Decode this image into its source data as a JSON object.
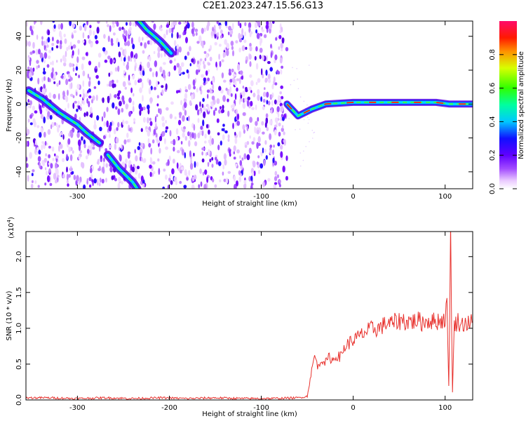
{
  "title": "C2E1.2023.247.15.56.G13",
  "chart_data": [
    {
      "type": "heatmap",
      "title": "C2E1.2023.247.15.56.G13",
      "xlabel": "Height of straight line (km)",
      "ylabel": "Frequency (Hz)",
      "xlim": [
        -356,
        130
      ],
      "ylim": [
        -50,
        49
      ],
      "xticks": [
        -300,
        -200,
        -100,
        0,
        100
      ],
      "yticks": [
        -40,
        -20,
        0,
        20,
        40
      ],
      "noise_region_x": [
        -356,
        -72
      ],
      "features": [
        {
          "name": "streak",
          "points": [
            [
              -353,
              8
            ],
            [
              -338,
              3
            ],
            [
              -320,
              -5
            ],
            [
              -300,
              -12
            ],
            [
              -290,
              -17
            ],
            [
              -276,
              -23
            ]
          ]
        },
        {
          "name": "streak",
          "points": [
            [
              -267,
              -30
            ],
            [
              -255,
              -38
            ],
            [
              -240,
              -46
            ],
            [
              -235,
              -50
            ]
          ]
        },
        {
          "name": "streak",
          "points": [
            [
              -233,
              49
            ],
            [
              -225,
              44
            ],
            [
              -210,
              37
            ],
            [
              -198,
              30
            ]
          ]
        },
        {
          "name": "carrier",
          "points": [
            [
              -72,
              0
            ],
            [
              -60,
              -7
            ],
            [
              -45,
              -3
            ],
            [
              -30,
              0
            ],
            [
              0,
              1
            ],
            [
              40,
              1
            ],
            [
              90,
              1
            ],
            [
              105,
              0
            ],
            [
              130,
              0
            ]
          ]
        }
      ],
      "colorbar": {
        "label": "Normalized spectral amplitude",
        "range": [
          0,
          1
        ],
        "ticks": [
          0.0,
          0.2,
          0.4,
          0.6,
          0.8
        ]
      }
    },
    {
      "type": "line",
      "xlabel": "Height of straight line (km)",
      "ylabel": "SNR (10 * v/v)",
      "scale_label_base": "(x10",
      "scale_label_exp": "4",
      "scale_label_close": ")",
      "xlim": [
        -356,
        130
      ],
      "ylim": [
        0,
        2.35
      ],
      "xticks": [
        -300,
        -200,
        -100,
        0,
        100
      ],
      "yticks": [
        0.0,
        0.5,
        1.0,
        1.5,
        2.0
      ],
      "ytick_labels": [
        "0.0",
        "0.5",
        "1.0",
        "1.5",
        "2.0"
      ],
      "color": "#e8322e",
      "series": [
        {
          "x": [
            -356,
            -330,
            -300,
            -270,
            -240,
            -210,
            -180,
            -150,
            -120,
            -90,
            -60,
            -50,
            -46,
            -42,
            -38,
            -34,
            -30,
            -26,
            -22,
            -18,
            -14,
            -10,
            -6,
            -2,
            2,
            6,
            10,
            14,
            18,
            22,
            26,
            30,
            34,
            38,
            42,
            46,
            50,
            54,
            58,
            62,
            66,
            70,
            74,
            78,
            82,
            86,
            90,
            94,
            97,
            100,
            102,
            104,
            106,
            108,
            110,
            114,
            118,
            122,
            126,
            130
          ],
          "values": [
            0.03,
            0.03,
            0.02,
            0.03,
            0.02,
            0.03,
            0.02,
            0.03,
            0.02,
            0.02,
            0.03,
            0.05,
            0.35,
            0.62,
            0.45,
            0.58,
            0.52,
            0.6,
            0.55,
            0.62,
            0.6,
            0.72,
            0.78,
            0.82,
            0.85,
            0.88,
            0.92,
            0.95,
            0.98,
            1.0,
            0.99,
            1.02,
            1.05,
            1.08,
            1.06,
            1.09,
            1.1,
            1.12,
            1.08,
            1.11,
            1.09,
            1.12,
            1.08,
            1.1,
            1.11,
            1.1,
            1.09,
            1.12,
            1.1,
            1.15,
            1.3,
            0.2,
            2.3,
            0.1,
            1.05,
            1.1,
            1.05,
            1.08,
            1.06,
            1.1
          ]
        }
      ]
    }
  ]
}
